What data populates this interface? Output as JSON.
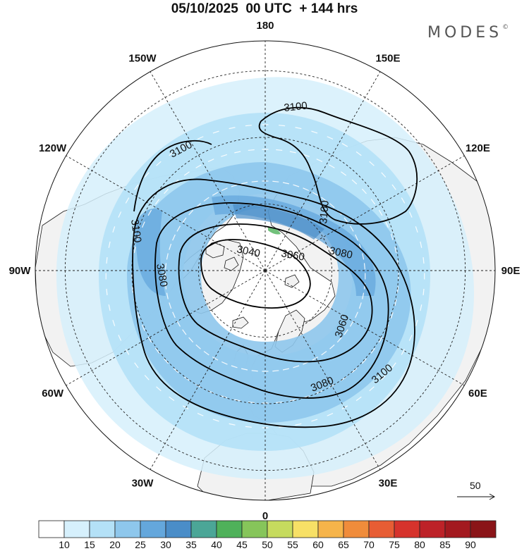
{
  "title": "05/10/2025  00 UTC  + 144 hrs",
  "brand": {
    "name": "MODES",
    "mark": "©"
  },
  "longitude_labels": [
    {
      "text": "180",
      "lon": 180
    },
    {
      "text": "150E",
      "lon": 150
    },
    {
      "text": "120E",
      "lon": 120
    },
    {
      "text": "90E",
      "lon": 90
    },
    {
      "text": "60E",
      "lon": 60
    },
    {
      "text": "30E",
      "lon": 30
    },
    {
      "text": "0",
      "lon": 0
    },
    {
      "text": "30W",
      "lon": -30
    },
    {
      "text": "60W",
      "lon": -60
    },
    {
      "text": "90W",
      "lon": -90
    },
    {
      "text": "120W",
      "lon": -120
    },
    {
      "text": "150W",
      "lon": -150
    }
  ],
  "contours": [
    {
      "value": "3040",
      "labels": [
        {
          "text": "3040"
        }
      ]
    },
    {
      "value": "3060",
      "labels": [
        {
          "text": "3060"
        },
        {
          "text": "3060"
        }
      ]
    },
    {
      "value": "3080",
      "labels": [
        {
          "text": "3080"
        },
        {
          "text": "3080"
        },
        {
          "text": "3080"
        }
      ]
    },
    {
      "value": "3100",
      "labels": [
        {
          "text": "3100"
        },
        {
          "text": "3100"
        },
        {
          "text": "3100"
        },
        {
          "text": "3100"
        },
        {
          "text": "3100"
        }
      ]
    }
  ],
  "vector_reference": {
    "text": "50"
  },
  "colorbar": {
    "labels": [
      "10",
      "15",
      "20",
      "25",
      "30",
      "35",
      "40",
      "45",
      "50",
      "55",
      "60",
      "65",
      "70",
      "75",
      "80",
      "85",
      "90"
    ],
    "colors": [
      "#ffffff",
      "#d6f0fc",
      "#b4e1f7",
      "#8ec7ec",
      "#64a7dc",
      "#4a8dc8",
      "#4ba697",
      "#4fb15a",
      "#86c55a",
      "#c6db5e",
      "#f7e066",
      "#f6b44a",
      "#f08c3b",
      "#e75d34",
      "#d6332c",
      "#bd2228",
      "#a3191f",
      "#8a1418"
    ]
  },
  "colors": {
    "land": "#f2f2f2",
    "coast": "#1a1a1a",
    "ocean": "#ffffff",
    "contour": "#000000"
  }
}
